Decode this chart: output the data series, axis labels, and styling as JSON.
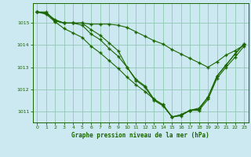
{
  "title": "Graphe pression niveau de la mer (hPa)",
  "bg_color": "#cce8f0",
  "grid_color": "#99ccbb",
  "line_color": "#1a6600",
  "marker": "+",
  "xlim_min": -0.5,
  "xlim_max": 23.5,
  "ylim_min": 1010.5,
  "ylim_max": 1015.9,
  "yticks": [
    1011,
    1012,
    1013,
    1014,
    1015
  ],
  "xticks": [
    0,
    1,
    2,
    3,
    4,
    5,
    6,
    7,
    8,
    9,
    10,
    11,
    12,
    13,
    14,
    15,
    16,
    17,
    18,
    19,
    20,
    21,
    22,
    23
  ],
  "series": [
    [
      1015.5,
      1015.5,
      1015.1,
      1015.0,
      1015.0,
      1015.0,
      1014.7,
      1014.45,
      1014.1,
      1013.75,
      1013.0,
      1012.4,
      1012.1,
      1011.5,
      1011.25,
      1010.75,
      1010.8,
      1011.05,
      1011.05,
      1011.55,
      1012.5,
      1013.0,
      1013.45,
      1013.95
    ],
    [
      1015.5,
      1015.45,
      1015.1,
      1015.0,
      1015.0,
      1014.9,
      1014.5,
      1014.25,
      1013.85,
      1013.5,
      1013.0,
      1012.45,
      1012.15,
      1011.55,
      1011.3,
      1010.75,
      1010.85,
      1011.05,
      1011.1,
      1011.65,
      1012.6,
      1013.1,
      1013.6,
      1014.05
    ],
    [
      1015.5,
      1015.4,
      1015.05,
      1014.75,
      1014.55,
      1014.35,
      1013.95,
      1013.65,
      1013.3,
      1012.95,
      1012.55,
      1012.2,
      1011.9,
      1011.55,
      1011.3,
      1010.75,
      1010.85,
      1011.05,
      1011.15,
      1011.65,
      1012.6,
      1013.1,
      1013.6,
      1014.05
    ],
    [
      1015.5,
      1015.45,
      1015.15,
      1015.0,
      1015.0,
      1015.0,
      1014.95,
      1014.95,
      1014.95,
      1014.9,
      1014.8,
      1014.6,
      1014.4,
      1014.2,
      1014.05,
      1013.8,
      1013.6,
      1013.4,
      1013.2,
      1013.0,
      1013.25,
      1013.55,
      1013.75,
      1014.0
    ]
  ]
}
